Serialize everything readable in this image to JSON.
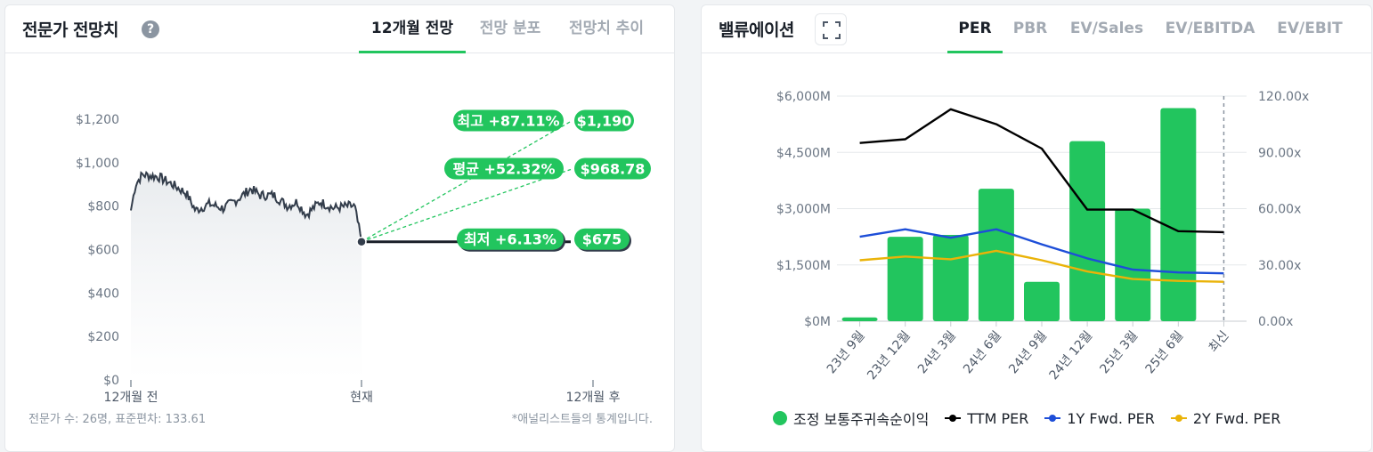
{
  "left": {
    "title": "전문가 전망치",
    "help_glyph": "?",
    "tabs": [
      "12개월 전망",
      "전망 분포",
      "전망치 추이"
    ],
    "active_tab": 0,
    "y_ticks": [
      "$1,200",
      "$1,000",
      "$800",
      "$600",
      "$400",
      "$200",
      "$0"
    ],
    "x_ticks": [
      "12개월 전",
      "현재",
      "12개월 후"
    ],
    "targets": {
      "high": {
        "label": "최고 +87.11%",
        "value": "$1,190"
      },
      "avg": {
        "label": "평균 +52.32%",
        "value": "$968.78"
      },
      "low": {
        "label": "최저 +6.13%",
        "value": "$675"
      }
    },
    "footnote_left": "전문가 수: 26명, 표준편차: 133.61",
    "footnote_right": "*애널리스트들의 통계입니다."
  },
  "right": {
    "title": "밸류에이션",
    "tabs": [
      "PER",
      "PBR",
      "EV/Sales",
      "EV/EBITDA",
      "EV/EBIT"
    ],
    "active_tab": 0,
    "y_left_ticks": [
      "$6,000M",
      "$4,500M",
      "$3,000M",
      "$1,500M",
      "$0M"
    ],
    "y_right_ticks": [
      "120.00x",
      "90.00x",
      "60.00x",
      "30.00x",
      "0.00x"
    ],
    "legend": [
      "조정 보통주귀속순이익",
      "TTM PER",
      "1Y Fwd. PER",
      "2Y Fwd. PER"
    ]
  },
  "colors": {
    "accent": "#22c55e",
    "ttm": "#000000",
    "fwd1": "#1d4ed8",
    "fwd2": "#eab308",
    "price_line": "#333d4b"
  },
  "chart_data": [
    {
      "type": "line",
      "title": "전문가 전망치",
      "x": [
        "12개월 전",
        "현재",
        "12개월 후"
      ],
      "ylim": [
        0,
        1200
      ],
      "current_price": 636,
      "price_start": 780,
      "price_range_approx": [
        700,
        960
      ],
      "targets": {
        "high": 1190,
        "average": 968.78,
        "low": 675
      },
      "target_changes_pct": {
        "high": 87.11,
        "average": 52.32,
        "low": 6.13
      }
    },
    {
      "type": "bar",
      "title": "밸류에이션",
      "categories": [
        "23년 9월",
        "23년 12월",
        "24년 3월",
        "24년 6월",
        "24년 9월",
        "24년 12월",
        "25년 3월",
        "25년 6월",
        "최신"
      ],
      "series": [
        {
          "name": "조정 보통주귀속순이익",
          "axis": "left",
          "values": [
            100,
            2250,
            2300,
            3530,
            1050,
            4800,
            3000,
            5680,
            null
          ]
        },
        {
          "name": "TTM PER",
          "axis": "right",
          "values": [
            95,
            97,
            113,
            105,
            92,
            59.5,
            59.5,
            48,
            47.5
          ]
        },
        {
          "name": "1Y Fwd. PER",
          "axis": "right",
          "values": [
            45,
            49,
            44.5,
            49,
            41,
            33.5,
            27.5,
            26,
            25.5
          ]
        },
        {
          "name": "2Y Fwd. PER",
          "axis": "right",
          "values": [
            32.5,
            34.5,
            33,
            37.5,
            32.5,
            26.5,
            22.5,
            21.5,
            21
          ]
        }
      ],
      "ylim_left": [
        0,
        6000
      ],
      "ylim_right": [
        0,
        120
      ],
      "grid": true,
      "legend_position": "bottom"
    }
  ]
}
